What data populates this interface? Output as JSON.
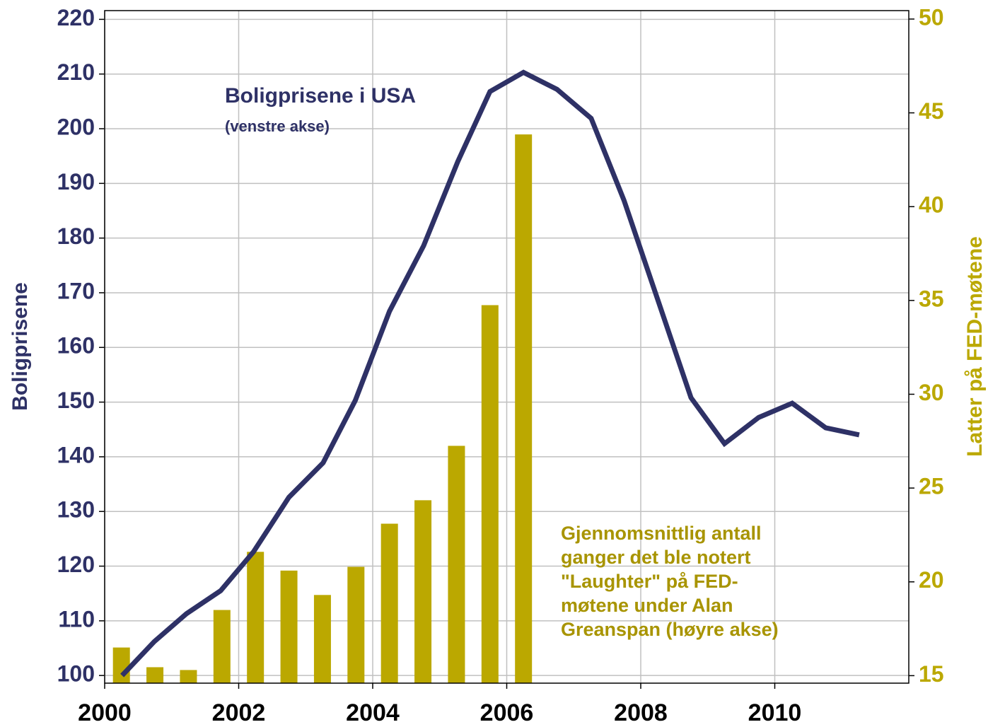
{
  "chart_data": {
    "type": "combo",
    "y_label": "Boligprisene",
    "y2_label": "Latter på FED-møtene",
    "annotations": [
      {
        "lines": [
          "Boligprisene i USA"
        ],
        "color": "#2e3166"
      },
      {
        "lines": [
          "(venstre akse)"
        ],
        "color": "#2e3166"
      },
      {
        "lines": [
          "Gjennomsnittlig antall",
          "ganger det ble notert",
          "\"Laughter\" på FED-",
          "møtene under Alan",
          "Greanspan (høyre akse)"
        ],
        "color": "#a89400"
      }
    ],
    "xlim": [
      2000,
      2012
    ],
    "xticks": [
      2000,
      2002,
      2004,
      2006,
      2008,
      2010
    ],
    "ylim": [
      98.6,
      221.6
    ],
    "yticks": [
      100,
      110,
      120,
      130,
      140,
      150,
      160,
      170,
      180,
      190,
      200,
      210,
      220
    ],
    "y2lim": [
      14.6,
      50.45
    ],
    "y2ticks": [
      15,
      20,
      25,
      30,
      35,
      40,
      45,
      50
    ],
    "grid": true,
    "series": [
      {
        "type": "bar",
        "axis": "y2",
        "color": "#bba800",
        "x": [
          2000.25,
          2000.75,
          2001.25,
          2001.75,
          2002.25,
          2002.75,
          2003.25,
          2003.75,
          2004.25,
          2004.75,
          2005.25,
          2005.75,
          2006.25
        ],
        "values": [
          16.5,
          15.45,
          15.3,
          18.5,
          21.6,
          20.6,
          19.3,
          20.8,
          23.1,
          24.35,
          27.25,
          34.75,
          43.85
        ]
      },
      {
        "type": "line",
        "axis": "y",
        "color": "#2e3166",
        "x": [
          2000.26,
          2000.74,
          2001.22,
          2001.73,
          2002.22,
          2002.75,
          2003.26,
          2003.74,
          2004.25,
          2004.76,
          2005.27,
          2005.75,
          2006.25,
          2006.75,
          2007.26,
          2007.75,
          2008.26,
          2008.75,
          2009.25,
          2009.76,
          2010.26,
          2010.76,
          2011.26
        ],
        "values": [
          100,
          106.2,
          111.3,
          115.5,
          122.6,
          132.6,
          138.9,
          150.3,
          166.6,
          178.6,
          194.0,
          206.8,
          210.3,
          207.2,
          201.9,
          186.9,
          168.5,
          150.8,
          142.4,
          147.2,
          149.8,
          145.3,
          144.0
        ]
      }
    ]
  }
}
